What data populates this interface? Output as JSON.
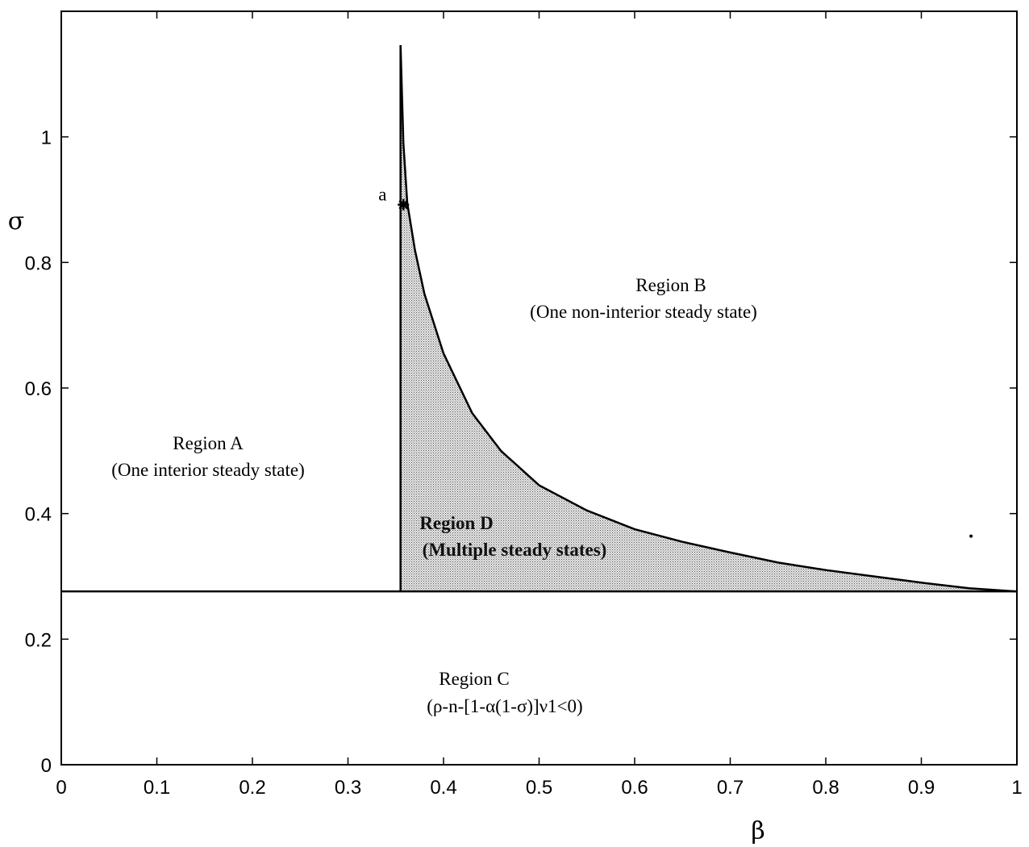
{
  "chart_data": {
    "type": "area",
    "xlabel": "β",
    "ylabel": "σ",
    "xlim": [
      0,
      1
    ],
    "ylim": [
      0,
      1.2
    ],
    "x_ticks": [
      "0",
      "0.1",
      "0.2",
      "0.3",
      "0.4",
      "0.5",
      "0.6",
      "0.7",
      "0.8",
      "0.9",
      "1"
    ],
    "y_ticks": [
      "0",
      "0.2",
      "0.4",
      "0.6",
      "0.8",
      "1"
    ],
    "horizontal_boundary": {
      "y": 0.276,
      "x_range": [
        0,
        1
      ]
    },
    "vertical_boundary": {
      "x": 0.355,
      "y_range": [
        0.276,
        1.146
      ]
    },
    "boundary_curve": {
      "x": [
        0.355,
        0.358,
        0.362,
        0.37,
        0.38,
        0.4,
        0.43,
        0.46,
        0.5,
        0.55,
        0.6,
        0.65,
        0.7,
        0.75,
        0.8,
        0.85,
        0.9,
        0.95,
        1.0
      ],
      "y": [
        1.146,
        0.99,
        0.895,
        0.82,
        0.75,
        0.655,
        0.56,
        0.5,
        0.445,
        0.405,
        0.375,
        0.355,
        0.338,
        0.322,
        0.31,
        0.3,
        0.29,
        0.281,
        0.276
      ]
    },
    "marked_point": {
      "label": "a",
      "x": 0.358,
      "y": 0.892
    },
    "stray_point": {
      "x": 0.952,
      "y": 0.364
    },
    "regions": [
      {
        "title": "Region A",
        "description": "(One interior steady state)"
      },
      {
        "title": "Region B",
        "description": "(One non-interior steady state)"
      },
      {
        "title": "Region C",
        "description": "(ρ-n-[1-α(1-σ)]ν1<0)"
      },
      {
        "title": "Region D",
        "description": "(Multiple steady states)"
      }
    ]
  }
}
